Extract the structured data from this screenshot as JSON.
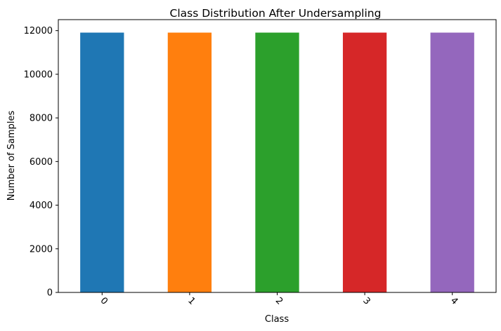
{
  "chart_data": {
    "type": "bar",
    "title": "Class Distribution After Undersampling",
    "xlabel": "Class",
    "ylabel": "Number of Samples",
    "categories": [
      "0",
      "1",
      "2",
      "3",
      "4"
    ],
    "values": [
      11909,
      11909,
      11909,
      11909,
      11909
    ],
    "colors": [
      "#1f77b4",
      "#ff7f0e",
      "#2ca02c",
      "#d62728",
      "#9467bd"
    ],
    "ylim": [
      0,
      12504
    ],
    "yticks": [
      0,
      2000,
      4000,
      6000,
      8000,
      10000,
      12000
    ],
    "xtick_rotation": 45,
    "grid": false,
    "legend": "none"
  }
}
